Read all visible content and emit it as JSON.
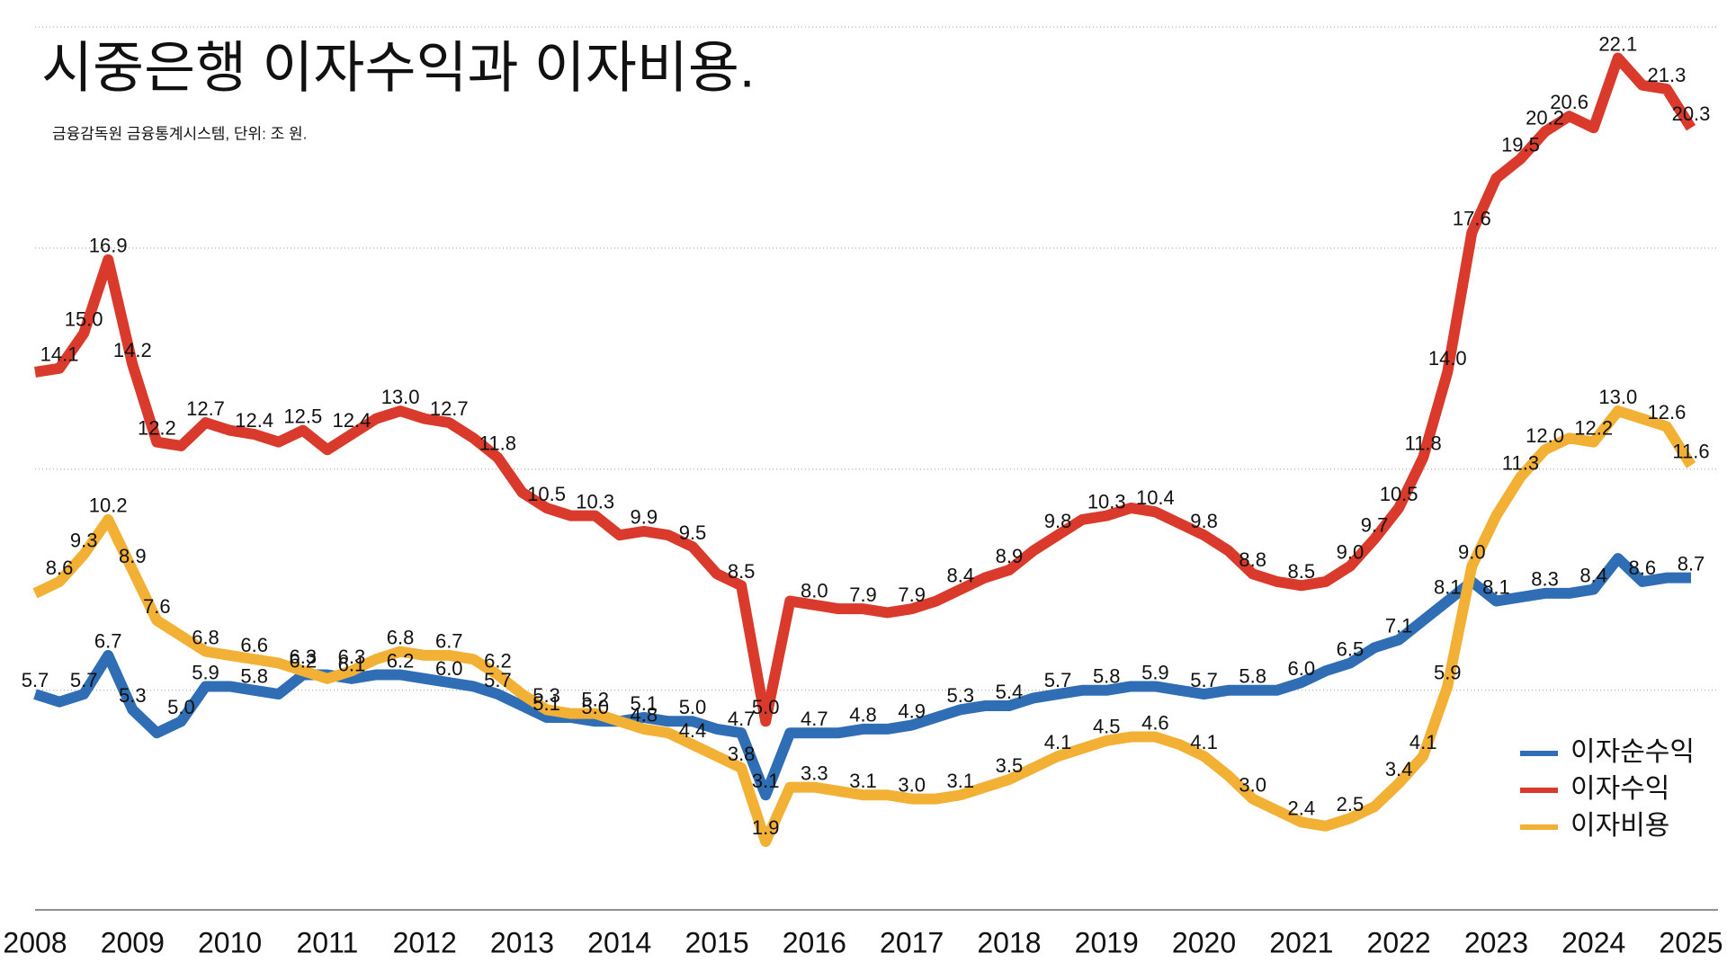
{
  "chart_data": {
    "type": "line",
    "title": "시중은행 이자수익과 이자비용.",
    "subtitle": "금융감독원 금융통계시스템, 단위: 조 원.",
    "x": [
      2008,
      2008.25,
      2008.5,
      2008.75,
      2009,
      2009.25,
      2009.5,
      2009.75,
      2010,
      2010.25,
      2010.5,
      2010.75,
      2011,
      2011.25,
      2011.5,
      2011.75,
      2012,
      2012.25,
      2012.5,
      2012.75,
      2013,
      2013.25,
      2013.5,
      2013.75,
      2014,
      2014.25,
      2014.5,
      2014.75,
      2015,
      2015.25,
      2015.5,
      2015.75,
      2016,
      2016.25,
      2016.5,
      2016.75,
      2017,
      2017.25,
      2017.5,
      2017.75,
      2018,
      2018.25,
      2018.5,
      2018.75,
      2019,
      2019.25,
      2019.5,
      2019.75,
      2020,
      2020.25,
      2020.5,
      2020.75,
      2021,
      2021.25,
      2021.5,
      2021.75,
      2022,
      2022.25,
      2022.5,
      2022.75,
      2023,
      2023.25,
      2023.5,
      2023.75,
      2024,
      2024.25,
      2024.5,
      2024.75,
      2025
    ],
    "xlim": [
      2008,
      2025
    ],
    "xticks": [
      2008,
      2009,
      2010,
      2011,
      2012,
      2013,
      2014,
      2015,
      2016,
      2017,
      2018,
      2019,
      2020,
      2021,
      2022,
      2023,
      2024,
      2025
    ],
    "ylim": [
      0,
      22.9
    ],
    "yticks": [
      5.8,
      11.5,
      17.2,
      22.9
    ],
    "grid": true,
    "legend": "lower right",
    "series": [
      {
        "name": "이자순수익",
        "color": "#2f6db5",
        "values": [
          5.7,
          5.5,
          5.7,
          6.7,
          5.3,
          4.7,
          5.0,
          5.9,
          5.9,
          5.8,
          5.7,
          6.2,
          6.2,
          6.1,
          6.2,
          6.2,
          6.1,
          6.0,
          5.9,
          5.7,
          5.4,
          5.1,
          5.1,
          5.0,
          5.0,
          5.1,
          5.0,
          5.0,
          4.8,
          4.7,
          3.1,
          4.7,
          4.7,
          4.7,
          4.8,
          4.8,
          4.9,
          5.1,
          5.3,
          5.4,
          5.4,
          5.6,
          5.7,
          5.8,
          5.8,
          5.9,
          5.9,
          5.8,
          5.7,
          5.8,
          5.8,
          5.8,
          6.0,
          6.3,
          6.5,
          6.9,
          7.1,
          7.6,
          8.1,
          8.6,
          8.1,
          8.2,
          8.3,
          8.3,
          8.4,
          9.2,
          8.6,
          8.7,
          8.7
        ],
        "value_labels": [
          "5.7",
          null,
          "5.7",
          "6.7",
          "5.3",
          null,
          "5.0",
          "5.9",
          null,
          "5.8",
          null,
          "6.2",
          null,
          "6.1",
          null,
          "6.2",
          null,
          "6.0",
          null,
          "5.7",
          null,
          "5.1",
          null,
          "5.0",
          null,
          "5.1",
          null,
          "5.0",
          null,
          "4.7",
          "3.1",
          null,
          "4.7",
          null,
          "4.8",
          null,
          "4.9",
          null,
          "5.3",
          null,
          "5.4",
          null,
          "5.7",
          null,
          "5.8",
          null,
          "5.9",
          null,
          "5.7",
          null,
          "5.8",
          null,
          "6.0",
          null,
          "6.5",
          null,
          "7.1",
          null,
          "8.1",
          null,
          "8.1",
          null,
          "8.3",
          null,
          "8.4",
          null,
          "8.6",
          null,
          "8.7"
        ]
      },
      {
        "name": "이자수익",
        "color": "#d93a2b",
        "values": [
          14.0,
          14.1,
          15.0,
          16.9,
          14.2,
          12.2,
          12.1,
          12.7,
          12.5,
          12.4,
          12.2,
          12.5,
          12.0,
          12.4,
          12.8,
          13.0,
          12.8,
          12.7,
          12.3,
          11.8,
          10.9,
          10.5,
          10.3,
          10.3,
          9.8,
          9.9,
          9.8,
          9.5,
          8.8,
          8.5,
          5.0,
          8.1,
          8.0,
          7.9,
          7.9,
          7.8,
          7.9,
          8.1,
          8.4,
          8.7,
          8.9,
          9.4,
          9.8,
          10.2,
          10.3,
          10.5,
          10.4,
          10.1,
          9.8,
          9.4,
          8.8,
          8.6,
          8.5,
          8.6,
          9.0,
          9.7,
          10.5,
          11.8,
          14.0,
          17.6,
          19.0,
          19.5,
          20.2,
          20.6,
          20.3,
          22.1,
          21.4,
          21.3,
          20.3
        ],
        "value_labels": [
          null,
          "14.1",
          "15.0",
          "16.9",
          "14.2",
          "12.2",
          null,
          "12.7",
          null,
          "12.4",
          null,
          "12.5",
          null,
          "12.4",
          null,
          "13.0",
          null,
          "12.7",
          null,
          "11.8",
          null,
          "10.5",
          null,
          "10.3",
          null,
          "9.9",
          null,
          "9.5",
          null,
          "8.5",
          "5.0",
          null,
          "8.0",
          null,
          "7.9",
          null,
          "7.9",
          null,
          "8.4",
          null,
          "8.9",
          null,
          "9.8",
          null,
          "10.3",
          null,
          "10.4",
          null,
          "9.8",
          null,
          "8.8",
          null,
          "8.5",
          null,
          "9.0",
          "9.7",
          "10.5",
          "11.8",
          "14.0",
          "17.6",
          null,
          "19.5",
          "20.2",
          "20.6",
          null,
          "22.1",
          null,
          "21.3",
          "20.3"
        ]
      },
      {
        "name": "이자비용",
        "color": "#f2b134",
        "values": [
          8.3,
          8.6,
          9.3,
          10.2,
          8.9,
          7.6,
          7.2,
          6.8,
          6.7,
          6.6,
          6.5,
          6.3,
          6.1,
          6.3,
          6.6,
          6.8,
          6.7,
          6.7,
          6.6,
          6.2,
          5.7,
          5.3,
          5.2,
          5.2,
          5.0,
          4.8,
          4.7,
          4.4,
          4.1,
          3.8,
          1.9,
          3.3,
          3.3,
          3.2,
          3.1,
          3.1,
          3.0,
          3.0,
          3.1,
          3.3,
          3.5,
          3.8,
          4.1,
          4.3,
          4.5,
          4.6,
          4.6,
          4.4,
          4.1,
          3.6,
          3.0,
          2.7,
          2.4,
          2.3,
          2.5,
          2.8,
          3.4,
          4.1,
          5.9,
          9.0,
          10.3,
          11.3,
          12.0,
          12.3,
          12.2,
          13.0,
          12.8,
          12.6,
          11.6
        ],
        "value_labels": [
          null,
          "8.6",
          "9.3",
          "10.2",
          "8.9",
          "7.6",
          null,
          "6.8",
          null,
          "6.6",
          null,
          "6.3",
          null,
          "6.3",
          null,
          "6.8",
          null,
          "6.7",
          null,
          "6.2",
          null,
          "5.3",
          null,
          "5.2",
          null,
          "4.8",
          null,
          "4.4",
          null,
          "3.8",
          "1.9",
          null,
          "3.3",
          null,
          "3.1",
          null,
          "3.0",
          null,
          "3.1",
          null,
          "3.5",
          null,
          "4.1",
          null,
          "4.5",
          null,
          "4.6",
          null,
          "4.1",
          null,
          "3.0",
          null,
          "2.4",
          null,
          "2.5",
          null,
          "3.4",
          "4.1",
          "5.9",
          "9.0",
          null,
          "11.3",
          "12.0",
          null,
          "12.2",
          "13.0",
          null,
          "12.6",
          "11.6"
        ]
      }
    ]
  }
}
